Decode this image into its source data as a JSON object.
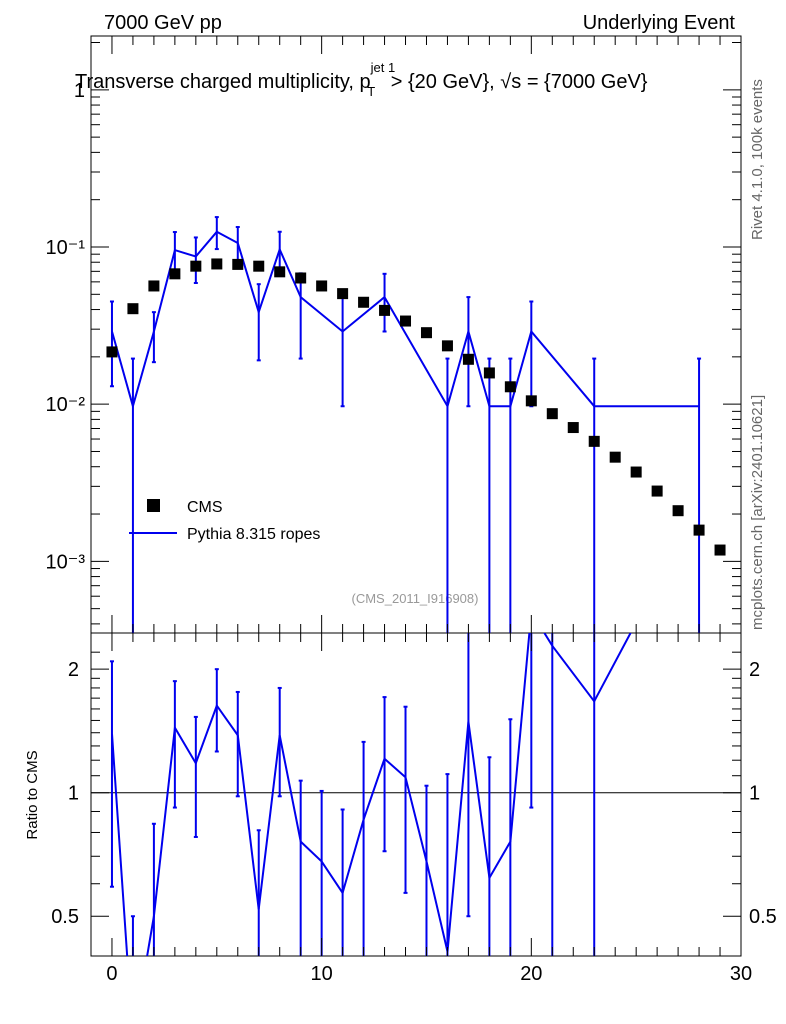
{
  "header": {
    "left": "7000 GeV pp",
    "right": "Underlying Event"
  },
  "title": {
    "main": "Transverse charged multiplicity, p",
    "sup": "jet 1",
    "sub": "T",
    "rest": " > {20 GeV}, √s = {7000 GeV}"
  },
  "side_labels": {
    "rivet": "Rivet 4.1.0,  100k events",
    "mcplots": "mcplots.cern.ch [arXiv:2401.10621]"
  },
  "watermark": "(CMS_2011_I916908)",
  "legend": {
    "data_label": "CMS",
    "mc_label": "Pythia 8.315 ropes"
  },
  "colors": {
    "data": "#000000",
    "mc": "#0000ee"
  },
  "chart_data": [
    {
      "type": "scatter",
      "name": "main",
      "yscale": "log",
      "xlim": [
        -1,
        30
      ],
      "ylim": [
        0.00035,
        2.2
      ],
      "ytick_values": [
        1,
        0.1,
        0.01,
        0.001
      ],
      "ytick_labels": [
        "1",
        "10⁻¹",
        "10⁻²",
        "10⁻³"
      ],
      "xlabel": "",
      "ylabel": "",
      "data_series": {
        "name": "CMS",
        "x": [
          0,
          1,
          2,
          3,
          4,
          5,
          6,
          7,
          8,
          9,
          10,
          11,
          12,
          13,
          14,
          15,
          16,
          17,
          18,
          19,
          20,
          21,
          22,
          23,
          24,
          25,
          26,
          27,
          28,
          29
        ],
        "y": [
          0.0215,
          0.0405,
          0.0565,
          0.0675,
          0.0755,
          0.078,
          0.0775,
          0.0755,
          0.0695,
          0.0635,
          0.0565,
          0.0505,
          0.0445,
          0.0395,
          0.0338,
          0.0285,
          0.0235,
          0.0193,
          0.0158,
          0.0129,
          0.0105,
          0.0087,
          0.0071,
          0.0058,
          0.0046,
          0.0037,
          0.0028,
          0.0021,
          0.00158,
          0.00118
        ]
      },
      "mc_series": {
        "name": "Pythia 8.315 ropes",
        "x": [
          0,
          1,
          2,
          3,
          4,
          5,
          6,
          7,
          8,
          9,
          11,
          13,
          16,
          17,
          18,
          19,
          20,
          23,
          28
        ],
        "y": [
          0.029,
          0.0097,
          0.029,
          0.0955,
          0.087,
          0.125,
          0.106,
          0.0385,
          0.0965,
          0.048,
          0.029,
          0.048,
          0.0097,
          0.029,
          0.0097,
          0.0097,
          0.029,
          0.0097,
          0.0097
        ],
        "lo": [
          0.013,
          0.0001,
          0.0185,
          0.0695,
          0.059,
          0.097,
          0.0775,
          0.019,
          0.068,
          0.0195,
          0.0097,
          0.029,
          0.0001,
          0.0097,
          0.0001,
          0.0001,
          0.0097,
          0.0001,
          0.0001
        ],
        "hi": [
          0.045,
          0.0195,
          0.0385,
          0.1245,
          0.115,
          0.155,
          0.134,
          0.058,
          0.125,
          0.068,
          0.048,
          0.0675,
          0.0195,
          0.048,
          0.0195,
          0.0195,
          0.045,
          0.0195,
          0.0195
        ],
        "step_from": 23,
        "step_to": 28
      }
    },
    {
      "type": "line",
      "name": "ratio",
      "yscale": "log",
      "xlim": [
        -1,
        30
      ],
      "ylim": [
        0.4,
        2.45
      ],
      "ytick_values": [
        2,
        1,
        0.5
      ],
      "ytick_labels": [
        "2",
        "1",
        "0.5"
      ],
      "ylabel": "Ratio to CMS",
      "xtick_values": [
        0,
        10,
        20,
        30
      ],
      "xtick_labels": [
        "0",
        "10",
        "20",
        "30"
      ],
      "reference": 1,
      "x": [
        0,
        1,
        2,
        3,
        4,
        5,
        6,
        7,
        8,
        9,
        10,
        11,
        12,
        13,
        14,
        15,
        16,
        17,
        18,
        19,
        20,
        21,
        23,
        25
      ],
      "y": [
        1.39,
        0.25,
        0.5,
        1.44,
        1.18,
        1.63,
        1.38,
        0.52,
        1.38,
        0.76,
        0.68,
        0.57,
        0.86,
        1.21,
        1.09,
        0.68,
        0.41,
        1.49,
        0.62,
        0.76,
        2.76,
        2.28,
        1.67,
        2.6
      ],
      "lo": [
        0.59,
        0.0,
        0.33,
        0.92,
        0.78,
        1.26,
        0.98,
        0.21,
        0.98,
        0.3,
        0.0,
        0.18,
        0.36,
        0.72,
        0.57,
        0.0,
        0.0,
        0.5,
        0.0,
        0.0,
        0.92,
        0.0,
        0.0,
        null
      ],
      "hi": [
        2.09,
        0.5,
        0.84,
        1.87,
        1.53,
        2.0,
        1.76,
        0.81,
        1.8,
        1.07,
        1.01,
        0.91,
        1.33,
        1.71,
        1.62,
        1.04,
        1.11,
        2.47,
        1.22,
        1.51,
        4.2,
        4.5,
        3.3,
        null
      ]
    }
  ]
}
